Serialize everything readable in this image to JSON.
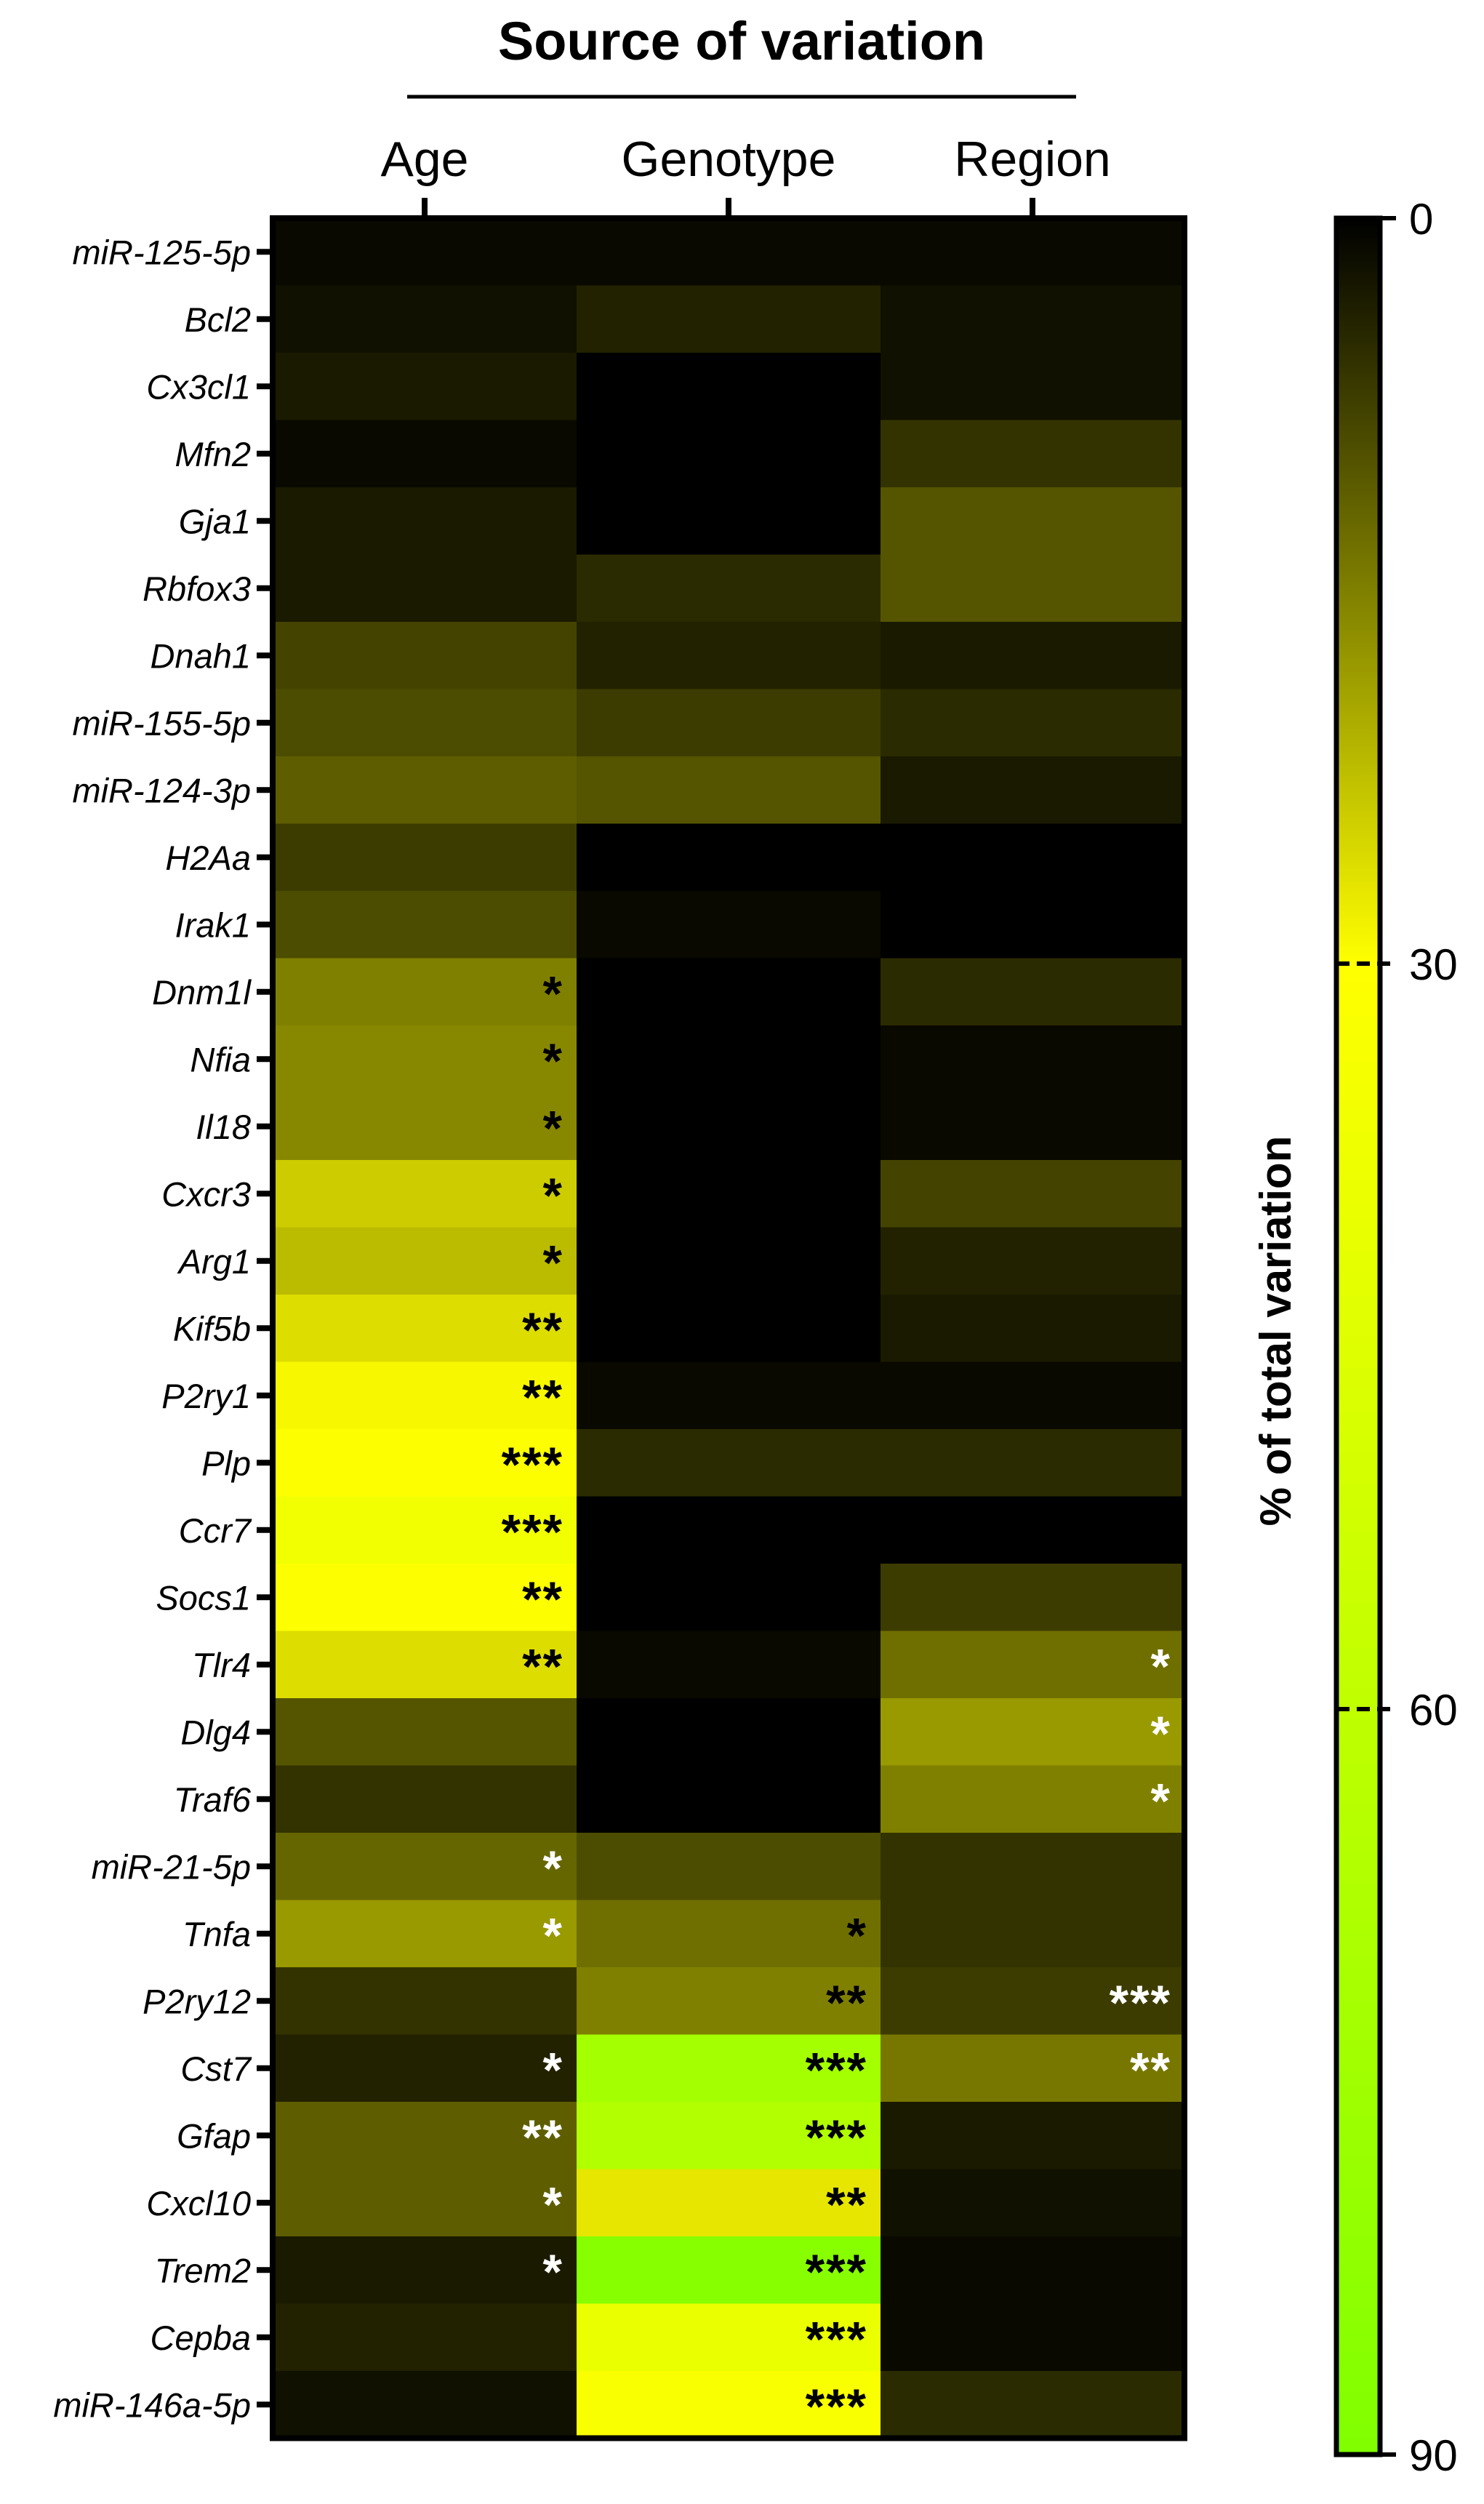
{
  "chart_data": {
    "type": "heatmap",
    "title": "Source of variation",
    "columns": [
      "Age",
      "Genotype",
      "Region"
    ],
    "rows": [
      "miR-125-5p",
      "Bcl2",
      "Cx3cl1",
      "Mfn2",
      "Gja1",
      "Rbfox3",
      "Dnah1",
      "miR-155-5p",
      "miR-124-3p",
      "H2Aa",
      "Irak1",
      "Dnm1l",
      "Nfia",
      "Il18",
      "Cxcr3",
      "Arg1",
      "Kif5b",
      "P2ry1",
      "Plp",
      "Ccr7",
      "Socs1",
      "Tlr4",
      "Dlg4",
      "Traf6",
      "miR-21-5p",
      "Tnfa",
      "P2ry12",
      "Cst7",
      "Gfap",
      "Cxcl10",
      "Trem2",
      "Cepba",
      "miR-146a-5p"
    ],
    "values": [
      [
        1,
        1,
        1
      ],
      [
        2,
        4,
        2
      ],
      [
        3,
        0,
        2
      ],
      [
        1,
        0,
        6
      ],
      [
        3,
        0,
        10
      ],
      [
        3,
        5,
        10
      ],
      [
        8,
        4,
        3
      ],
      [
        9,
        7,
        5
      ],
      [
        11,
        10,
        3
      ],
      [
        7,
        0,
        0
      ],
      [
        9,
        1,
        0
      ],
      [
        15,
        0,
        5
      ],
      [
        16,
        0,
        1
      ],
      [
        16,
        0,
        1
      ],
      [
        24,
        0,
        8
      ],
      [
        22,
        0,
        4
      ],
      [
        26,
        0,
        3
      ],
      [
        29,
        1,
        1
      ],
      [
        31,
        5,
        5
      ],
      [
        36,
        0,
        0
      ],
      [
        31,
        0,
        7
      ],
      [
        26,
        1,
        13
      ],
      [
        10,
        0,
        18
      ],
      [
        6,
        0,
        15
      ],
      [
        12,
        9,
        6
      ],
      [
        18,
        13,
        6
      ],
      [
        6,
        15,
        7
      ],
      [
        4,
        73,
        14
      ],
      [
        11,
        67,
        3
      ],
      [
        11,
        27,
        2
      ],
      [
        3,
        86,
        1
      ],
      [
        4,
        40,
        1
      ],
      [
        2,
        33,
        5
      ]
    ],
    "annotations": [
      [
        "",
        "",
        ""
      ],
      [
        "",
        "",
        ""
      ],
      [
        "",
        "",
        ""
      ],
      [
        "",
        "",
        ""
      ],
      [
        "",
        "",
        ""
      ],
      [
        "",
        "",
        ""
      ],
      [
        "",
        "",
        ""
      ],
      [
        "",
        "",
        ""
      ],
      [
        "",
        "",
        ""
      ],
      [
        "",
        "",
        ""
      ],
      [
        "",
        "",
        ""
      ],
      [
        "*",
        "",
        ""
      ],
      [
        "*",
        "",
        ""
      ],
      [
        "*",
        "",
        ""
      ],
      [
        "*",
        "",
        ""
      ],
      [
        "*",
        "",
        ""
      ],
      [
        "**",
        "",
        ""
      ],
      [
        "**",
        "",
        ""
      ],
      [
        "***",
        "",
        ""
      ],
      [
        "***",
        "",
        ""
      ],
      [
        "**",
        "",
        ""
      ],
      [
        "**",
        "",
        "*"
      ],
      [
        "",
        "",
        "*"
      ],
      [
        "",
        "",
        "*"
      ],
      [
        "*",
        "",
        ""
      ],
      [
        "*",
        "*",
        ""
      ],
      [
        "",
        "**",
        "***"
      ],
      [
        "*",
        "***",
        "**"
      ],
      [
        "**",
        "***",
        ""
      ],
      [
        "*",
        "**",
        ""
      ],
      [
        "*",
        "***",
        ""
      ],
      [
        "",
        "***",
        ""
      ],
      [
        "",
        "***",
        ""
      ]
    ],
    "annotation_colors": [
      [
        "",
        "",
        ""
      ],
      [
        "",
        "",
        ""
      ],
      [
        "",
        "",
        ""
      ],
      [
        "",
        "",
        ""
      ],
      [
        "",
        "",
        ""
      ],
      [
        "",
        "",
        ""
      ],
      [
        "",
        "",
        ""
      ],
      [
        "",
        "",
        ""
      ],
      [
        "",
        "",
        ""
      ],
      [
        "",
        "",
        ""
      ],
      [
        "",
        "",
        ""
      ],
      [
        "#000000",
        "",
        ""
      ],
      [
        "#000000",
        "",
        ""
      ],
      [
        "#000000",
        "",
        ""
      ],
      [
        "#000000",
        "",
        ""
      ],
      [
        "#000000",
        "",
        ""
      ],
      [
        "#000000",
        "",
        ""
      ],
      [
        "#000000",
        "",
        ""
      ],
      [
        "#000000",
        "",
        ""
      ],
      [
        "#000000",
        "",
        ""
      ],
      [
        "#000000",
        "",
        ""
      ],
      [
        "#000000",
        "",
        "#ffffff"
      ],
      [
        "",
        "",
        "#ffffff"
      ],
      [
        "",
        "",
        "#ffffff"
      ],
      [
        "#ffffff",
        "",
        ""
      ],
      [
        "#ffffff",
        "#000000",
        ""
      ],
      [
        "",
        "#000000",
        "#ffffff"
      ],
      [
        "#ffffff",
        "#000000",
        "#ffffff"
      ],
      [
        "#ffffff",
        "#000000",
        ""
      ],
      [
        "#ffffff",
        "#000000",
        ""
      ],
      [
        "#ffffff",
        "#000000",
        ""
      ],
      [
        "",
        "#000000",
        ""
      ],
      [
        "",
        "#000000",
        ""
      ]
    ],
    "colorbar": {
      "label": "% of total variation",
      "ticks": [
        "0",
        "30",
        "60",
        "90"
      ],
      "range": [
        0,
        90
      ],
      "stops": [
        {
          "value": 0,
          "color": "#000000"
        },
        {
          "value": 30,
          "color": "#ffff00"
        },
        {
          "value": 90,
          "color": "#80ff00"
        }
      ]
    }
  }
}
